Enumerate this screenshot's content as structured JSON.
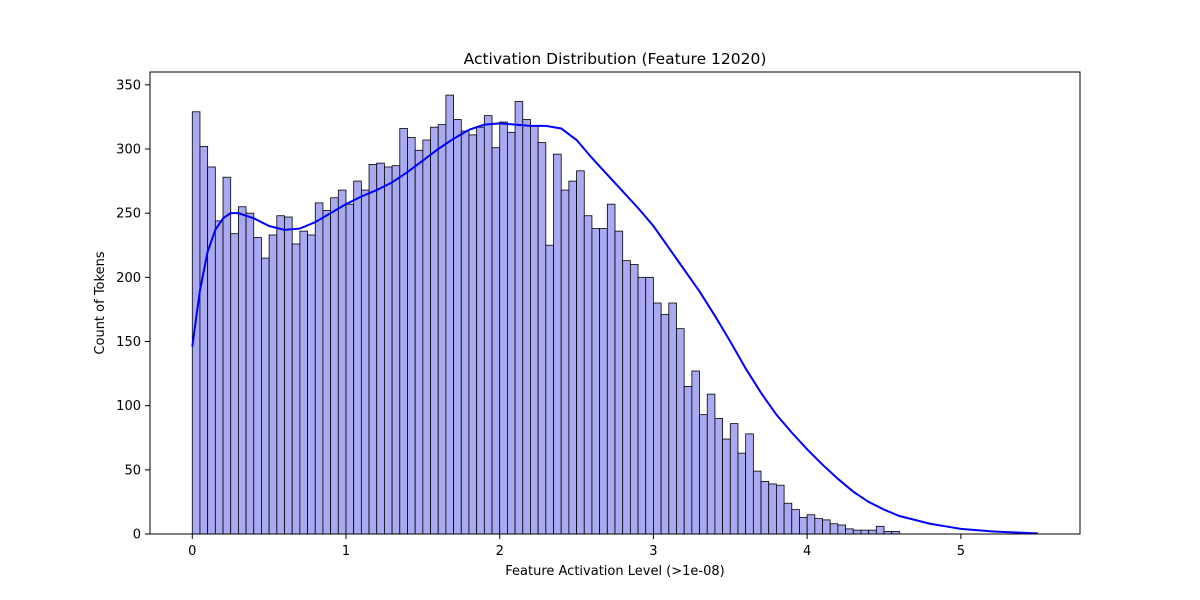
{
  "chart_data": {
    "type": "bar",
    "title": "Activation Distribution (Feature 12020)",
    "xlabel": "Feature Activation Level (>1e-08)",
    "ylabel": "Count of Tokens",
    "xlim": [
      -0.275,
      5.775
    ],
    "ylim": [
      0,
      360
    ],
    "xticks": [
      0,
      1,
      2,
      3,
      4,
      5
    ],
    "xtick_labels": [
      "0",
      "1",
      "2",
      "3",
      "4",
      "5"
    ],
    "yticks": [
      0,
      50,
      100,
      150,
      200,
      250,
      300,
      350
    ],
    "ytick_labels": [
      "0",
      "50",
      "100",
      "150",
      "200",
      "250",
      "300",
      "350"
    ],
    "grid": false,
    "bin_start": 0,
    "bin_width": 0.05,
    "bar_color": "#aaaaf2",
    "bar_edge_color": "#000000",
    "kde_color": "#0000ff",
    "counts": [
      329,
      302,
      286,
      244,
      278,
      234,
      255,
      250,
      231,
      215,
      233,
      248,
      247,
      226,
      236,
      233,
      258,
      252,
      262,
      268,
      257,
      275,
      268,
      288,
      289,
      286,
      287,
      316,
      309,
      299,
      307,
      317,
      319,
      342,
      323,
      314,
      311,
      317,
      326,
      301,
      321,
      313,
      337,
      323,
      318,
      305,
      225,
      296,
      268,
      275,
      283,
      248,
      238,
      238,
      257,
      236,
      213,
      210,
      200,
      200,
      180,
      171,
      180,
      160,
      115,
      127,
      93,
      109,
      90,
      74,
      86,
      63,
      78,
      49,
      41,
      39,
      38,
      24,
      19,
      13,
      15,
      12,
      11,
      8,
      7,
      4,
      3,
      3,
      3,
      6,
      2,
      2
    ],
    "kde": {
      "x": [
        0,
        0.05,
        0.1,
        0.15,
        0.2,
        0.25,
        0.3,
        0.4,
        0.5,
        0.6,
        0.7,
        0.8,
        0.9,
        1.0,
        1.1,
        1.2,
        1.3,
        1.4,
        1.5,
        1.6,
        1.7,
        1.8,
        1.9,
        2.0,
        2.1,
        2.2,
        2.3,
        2.4,
        2.5,
        2.6,
        2.7,
        2.8,
        2.9,
        3.0,
        3.1,
        3.2,
        3.3,
        3.4,
        3.5,
        3.6,
        3.7,
        3.8,
        3.9,
        4.0,
        4.1,
        4.2,
        4.3,
        4.4,
        4.5,
        4.6,
        4.7,
        4.8,
        4.9,
        5.0,
        5.1,
        5.2,
        5.3,
        5.4,
        5.5
      ],
      "y": [
        146,
        190,
        220,
        237,
        246,
        250,
        250,
        246,
        240,
        237,
        238,
        243,
        250,
        257,
        263,
        268,
        274,
        282,
        291,
        300,
        308,
        315,
        319,
        320,
        319,
        318,
        318,
        316,
        307,
        293,
        280,
        267,
        254,
        240,
        223,
        206,
        189,
        170,
        150,
        129,
        110,
        93,
        79,
        66,
        54,
        43,
        33,
        25,
        19,
        14,
        11,
        8,
        6,
        4,
        3,
        2,
        1.5,
        1,
        0.5
      ]
    }
  }
}
